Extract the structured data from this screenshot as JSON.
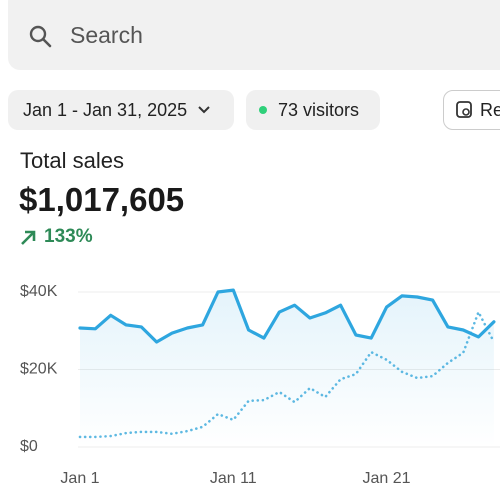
{
  "search": {
    "placeholder": "Search"
  },
  "filters": {
    "date_range": "Jan 1 - Jan 31, 2025",
    "visitors": "73 visitors",
    "report": "Re"
  },
  "summary": {
    "label": "Total sales",
    "value": "$1,017,605",
    "change": "133%"
  },
  "chart_data": {
    "type": "line",
    "x": [
      1,
      2,
      3,
      4,
      5,
      6,
      7,
      8,
      9,
      10,
      11,
      12,
      13,
      14,
      15,
      16,
      17,
      18,
      19,
      20,
      21,
      22,
      23,
      24,
      25,
      26,
      27,
      28
    ],
    "xlim": [
      1,
      28.4
    ],
    "xticks": [
      {
        "value": 1,
        "label": "Jan 1"
      },
      {
        "value": 11,
        "label": "Jan 11"
      },
      {
        "value": 21,
        "label": "Jan 21"
      }
    ],
    "ylim": [
      0,
      42000
    ],
    "yticks": [
      {
        "value": 0,
        "label": "$0"
      },
      {
        "value": 20000,
        "label": "$20K"
      },
      {
        "value": 40000,
        "label": "$40K"
      }
    ],
    "grid": true,
    "series": [
      {
        "color": "#2ea6df",
        "line_style": "solid",
        "area": true,
        "values": [
          30700,
          30500,
          34000,
          31500,
          31000,
          27100,
          29400,
          30700,
          31500,
          40000,
          40500,
          30200,
          28100,
          34800,
          36600,
          33300,
          34600,
          36600,
          28900,
          28100,
          36100,
          39000,
          38700,
          37900,
          31000,
          30200,
          28400,
          32300
        ]
      },
      {
        "color": "#5fb9e2",
        "line_style": "dotted",
        "area": false,
        "values": [
          2600,
          2600,
          2800,
          3600,
          3900,
          3900,
          3400,
          4100,
          5200,
          8500,
          7000,
          11900,
          12100,
          14200,
          11600,
          15200,
          12900,
          17500,
          18800,
          24500,
          22500,
          19400,
          17800,
          18300,
          21700,
          24300,
          34800,
          27100
        ]
      }
    ]
  }
}
